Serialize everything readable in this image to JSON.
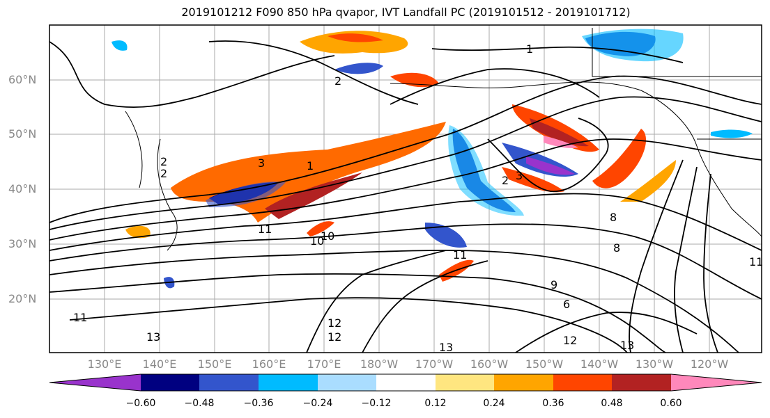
{
  "title": "2019101212 F090 850 hPa qvapor, IVT Landfall PC (2019101512 - 2019101712)",
  "latitude_labels": [
    "60°N",
    "50°N",
    "40°N",
    "30°N",
    "20°N"
  ],
  "longitude_labels": [
    "130°E",
    "140°E",
    "150°E",
    "160°E",
    "170°E",
    "180°W",
    "170°W",
    "160°W",
    "150°W",
    "140°W",
    "130°W",
    "120°W"
  ],
  "colorbar": {
    "tick_labels": [
      "−0.60",
      "−0.48",
      "−0.36",
      "−0.24",
      "−0.12",
      "0.12",
      "0.24",
      "0.36",
      "0.48",
      "0.60"
    ],
    "colors": [
      "#9933cc",
      "#000080",
      "#3355cc",
      "#00bbff",
      "#aaddff",
      "#ffffff",
      "#ffe680",
      "#ffa500",
      "#ff4500",
      "#b22222",
      "#ff88bb"
    ]
  },
  "contour_labels": [
    "1",
    "2",
    "2",
    "2",
    "3",
    "3",
    "2",
    "1",
    "10",
    "10",
    "11",
    "11",
    "11",
    "12",
    "13",
    "13",
    "13",
    "12",
    "9",
    "6",
    "8",
    "8",
    "11",
    "12"
  ]
}
